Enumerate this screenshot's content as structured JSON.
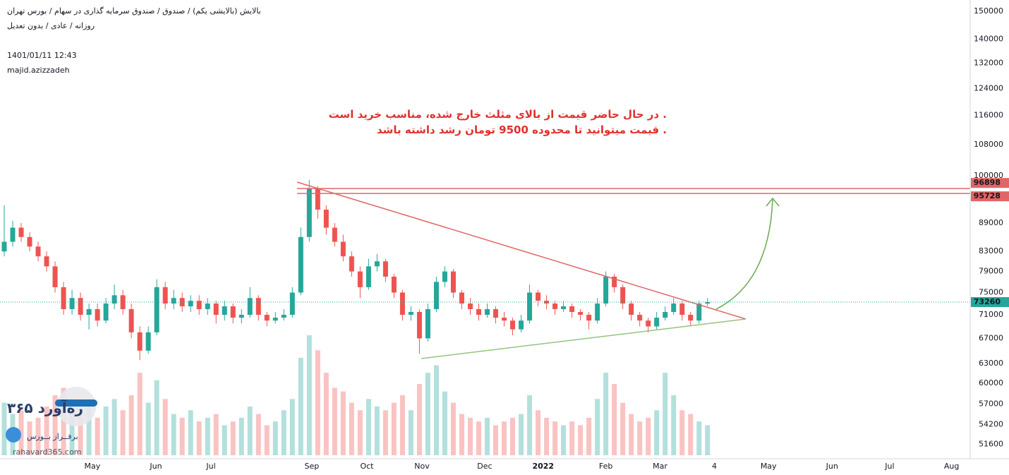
{
  "chart_data": {
    "type": "candlestick",
    "header": [
      "بالایش (بالایشی یکم) / صندوق / صندوق سرمایه گذاری در سهام / بورس تهران",
      "روزانه / عادی / بدون تعدیل"
    ],
    "timestamp": "1401/01/11 12:43",
    "author": "majid.azizzadeh",
    "annotations": [
      ". در حال حاضر قیمت از بالای مثلث خارج شده، مناسب خرید است",
      ". قیمت میتوانید تا محدوده 9500 تومان رشد داشته باشد"
    ],
    "watermark": [
      "ره‌آورد ۳۶۵",
      "برفــراز بــورس",
      "rahavard365.com"
    ],
    "log_scale": true,
    "grid": true,
    "up_color": "#26a69a",
    "down_color": "#ef5350",
    "ylim": [
      49800,
      154200
    ],
    "yticks": [
      150000,
      140000,
      132000,
      124000,
      116000,
      108000,
      100000,
      89000,
      83000,
      79000,
      75000,
      71000,
      67000,
      63000,
      60000,
      57000,
      54200,
      51600
    ],
    "xlim": [
      -0.5,
      114
    ],
    "xticks": [
      {
        "value": 10.4,
        "label": "May"
      },
      {
        "value": 17.9,
        "label": "Jun"
      },
      {
        "value": 24.4,
        "label": "Jul"
      },
      {
        "value": 36.3,
        "label": "Sep"
      },
      {
        "value": 42.8,
        "label": "Oct"
      },
      {
        "value": 49.3,
        "label": "Nov"
      },
      {
        "value": 56.7,
        "label": "Dec"
      },
      {
        "value": 63.6,
        "label": "2022"
      },
      {
        "value": 71,
        "label": "Feb"
      },
      {
        "value": 77.4,
        "label": "Mar"
      },
      {
        "value": 83.8,
        "label": "4"
      },
      {
        "value": 90.2,
        "label": "May"
      },
      {
        "value": 97.7,
        "label": "Jun"
      },
      {
        "value": 104.5,
        "label": "Jul"
      },
      {
        "value": 111.8,
        "label": "Aug"
      }
    ],
    "open": [
      83000,
      85000,
      88000,
      86000,
      84000,
      82000,
      80000,
      76000,
      72000,
      74000,
      71000,
      72000,
      70000,
      73000,
      74500,
      72000,
      68000,
      65000,
      68000,
      76000,
      73000,
      74000,
      72500,
      73500,
      72000,
      73000,
      71000,
      72500,
      70500,
      71000,
      74000,
      71000,
      70000,
      70500,
      71000,
      75000,
      86000,
      97000,
      92000,
      88000,
      85000,
      82000,
      79000,
      76000,
      80000,
      81000,
      78000,
      75000,
      71000,
      71500,
      67000,
      72000,
      77000,
      79000,
      75000,
      73000,
      72000,
      71000,
      72000,
      70500,
      70000,
      68500,
      70000,
      75000,
      73500,
      73000,
      72000,
      72500,
      71500,
      71000,
      70000,
      73000,
      78000,
      76000,
      73000,
      71000,
      70000,
      69000,
      70500,
      71500,
      73000,
      71000,
      70000,
      73000
    ],
    "high": [
      93000,
      89500,
      89000,
      87000,
      85000,
      83000,
      81000,
      77000,
      75500,
      75000,
      73000,
      73000,
      74000,
      76500,
      75500,
      73000,
      69000,
      69000,
      77500,
      77000,
      75500,
      75000,
      74500,
      74500,
      74000,
      73500,
      73500,
      73000,
      72000,
      76000,
      74500,
      71500,
      71500,
      72000,
      76000,
      88000,
      99000,
      97500,
      93000,
      89000,
      86500,
      83000,
      80000,
      81500,
      82500,
      81500,
      78500,
      75500,
      72500,
      72000,
      73000,
      78000,
      80000,
      79500,
      75500,
      74000,
      73000,
      73000,
      72500,
      71500,
      70500,
      71000,
      76500,
      75500,
      74500,
      73500,
      73500,
      73000,
      72000,
      71500,
      74000,
      79000,
      78500,
      76500,
      73500,
      71500,
      70500,
      71500,
      72500,
      74000,
      73500,
      71500,
      73500,
      74000
    ],
    "low": [
      82000,
      84000,
      85000,
      83000,
      81000,
      79000,
      75000,
      71000,
      71000,
      70000,
      68500,
      69000,
      69500,
      72000,
      71000,
      67000,
      63500,
      64500,
      67500,
      72000,
      72000,
      71500,
      71500,
      71000,
      71000,
      69500,
      70000,
      69500,
      69500,
      70500,
      70000,
      69000,
      69500,
      70000,
      70500,
      74500,
      85000,
      90000,
      86500,
      84000,
      81000,
      78000,
      74000,
      75500,
      79000,
      77000,
      74000,
      70000,
      70000,
      64500,
      66500,
      71500,
      76000,
      74000,
      72000,
      71000,
      70000,
      70500,
      69500,
      69000,
      67500,
      68000,
      69500,
      72500,
      72000,
      71000,
      71500,
      70500,
      70000,
      68500,
      69500,
      72500,
      75000,
      72000,
      70000,
      69000,
      68000,
      68500,
      70000,
      71000,
      70000,
      69000,
      69500,
      72500
    ],
    "close": [
      85000,
      88000,
      86000,
      84000,
      82000,
      80000,
      76000,
      72000,
      74000,
      71000,
      72000,
      70000,
      73000,
      74500,
      72000,
      68000,
      65000,
      68000,
      76000,
      73000,
      74000,
      72500,
      73500,
      72000,
      73000,
      71000,
      72500,
      70500,
      71000,
      74000,
      71000,
      70000,
      70500,
      71000,
      75000,
      86000,
      97000,
      92000,
      88000,
      85000,
      82000,
      79000,
      76000,
      80000,
      81000,
      78000,
      75000,
      71000,
      71500,
      67000,
      72000,
      77000,
      79000,
      75000,
      73000,
      72000,
      71000,
      72000,
      70500,
      70000,
      68500,
      70000,
      75000,
      73500,
      73000,
      72000,
      72500,
      71500,
      71000,
      70000,
      73000,
      78000,
      76000,
      73000,
      71000,
      70000,
      69000,
      70500,
      71500,
      73000,
      71000,
      70000,
      73000,
      73260
    ],
    "volume": [
      70,
      55,
      60,
      45,
      50,
      65,
      80,
      90,
      60,
      55,
      70,
      50,
      65,
      75,
      60,
      80,
      110,
      70,
      100,
      75,
      55,
      50,
      60,
      45,
      50,
      55,
      40,
      45,
      50,
      65,
      55,
      40,
      45,
      60,
      75,
      130,
      160,
      140,
      110,
      90,
      85,
      70,
      60,
      75,
      65,
      60,
      70,
      80,
      60,
      95,
      110,
      120,
      85,
      70,
      55,
      50,
      45,
      50,
      40,
      45,
      50,
      55,
      80,
      60,
      50,
      45,
      40,
      45,
      40,
      50,
      75,
      110,
      95,
      70,
      55,
      45,
      50,
      60,
      110,
      80,
      60,
      55,
      45,
      40
    ],
    "levels": [
      96898,
      95728
    ],
    "last_price": 73260
  }
}
